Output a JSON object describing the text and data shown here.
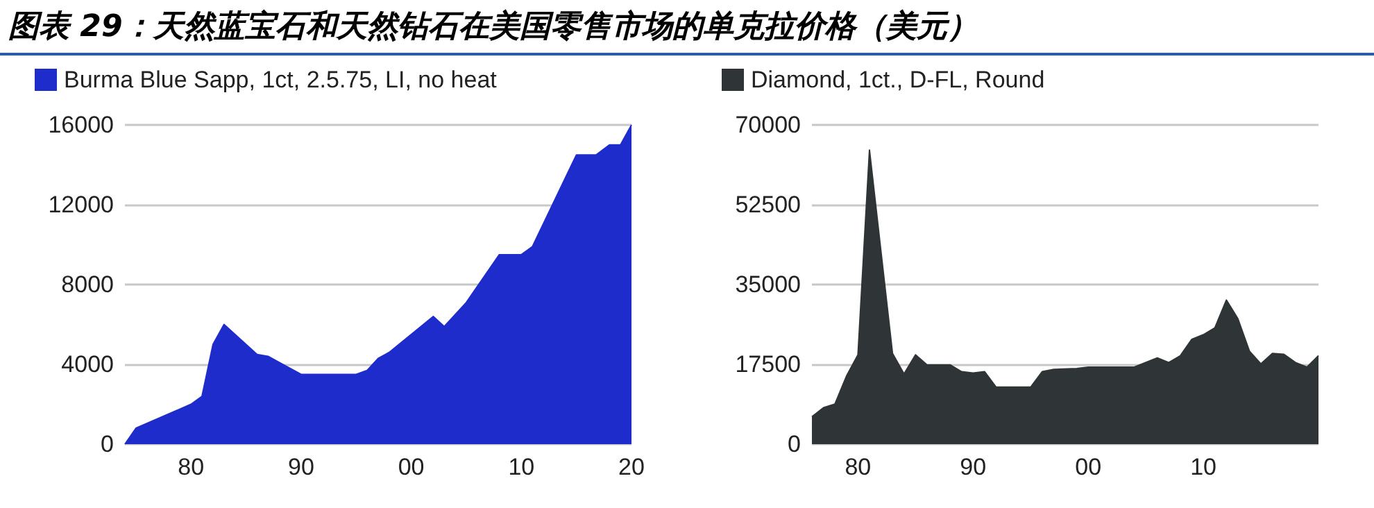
{
  "chart_data": [
    {
      "type": "area",
      "title": "图表 29：天然蓝宝石和天然钻石在美国零售市场的单克拉价格（美元）",
      "x": [
        1974,
        1975,
        1980,
        1981,
        1982,
        1983,
        1986,
        1987,
        1988,
        1990,
        1995,
        1996,
        1997,
        1998,
        2002,
        2003,
        2005,
        2008,
        2010,
        2011,
        2015,
        2016.8,
        2018,
        2019,
        2020
      ],
      "series": [
        {
          "name": "Burma Blue Sapp, 1ct, 2.5.75, LI, no heat",
          "color": "#1f2ccc",
          "values": [
            0,
            800,
            2000,
            2400,
            5000,
            6000,
            4500,
            4400,
            4100,
            3500,
            3500,
            3700,
            4300,
            4600,
            6400,
            5900,
            7100,
            9500,
            9500,
            9900,
            14500,
            14500,
            15000,
            15000,
            16000
          ]
        }
      ],
      "xlim": [
        1974,
        2020
      ],
      "xticks": [
        {
          "value": 1980,
          "label": "80"
        },
        {
          "value": 1990,
          "label": "90"
        },
        {
          "value": 2000,
          "label": "00"
        },
        {
          "value": 2010,
          "label": "10"
        },
        {
          "value": 2020,
          "label": "20"
        }
      ],
      "ylim": [
        0,
        16000
      ],
      "yticks": [
        0,
        4000,
        8000,
        12000,
        16000
      ],
      "grid": "y",
      "legend": "top left"
    },
    {
      "type": "area",
      "x": [
        1976,
        1977,
        1978,
        1979,
        1980,
        1981,
        1983,
        1984,
        1985,
        1986,
        1988,
        1989,
        1990,
        1991,
        1992,
        1995,
        1996,
        1997,
        1999,
        2000,
        2004,
        2006,
        2007,
        2008,
        2009,
        2010,
        2011,
        2012,
        2013,
        2014,
        2015,
        2016,
        2017,
        2018,
        2019,
        2020
      ],
      "series": [
        {
          "name": "Diamond, 1ct., D-FL, Round",
          "color": "#2f3436",
          "values": [
            6000,
            8000,
            8800,
            14900,
            19600,
            64500,
            19900,
            15400,
            19600,
            17400,
            17400,
            15900,
            15600,
            15900,
            12500,
            12500,
            15900,
            16400,
            16600,
            16900,
            16900,
            18900,
            17900,
            19400,
            23000,
            24000,
            25500,
            31600,
            27500,
            20400,
            17600,
            19900,
            19700,
            17900,
            16900,
            19400
          ]
        }
      ],
      "xlim": [
        1976,
        2020
      ],
      "xticks": [
        {
          "value": 1980,
          "label": "80"
        },
        {
          "value": 1990,
          "label": "90"
        },
        {
          "value": 2000,
          "label": "00"
        },
        {
          "value": 2010,
          "label": "10"
        }
      ],
      "ylim": [
        0,
        70000
      ],
      "yticks": [
        0,
        17500,
        35000,
        52500,
        70000
      ],
      "grid": "y",
      "legend": "top left"
    }
  ]
}
